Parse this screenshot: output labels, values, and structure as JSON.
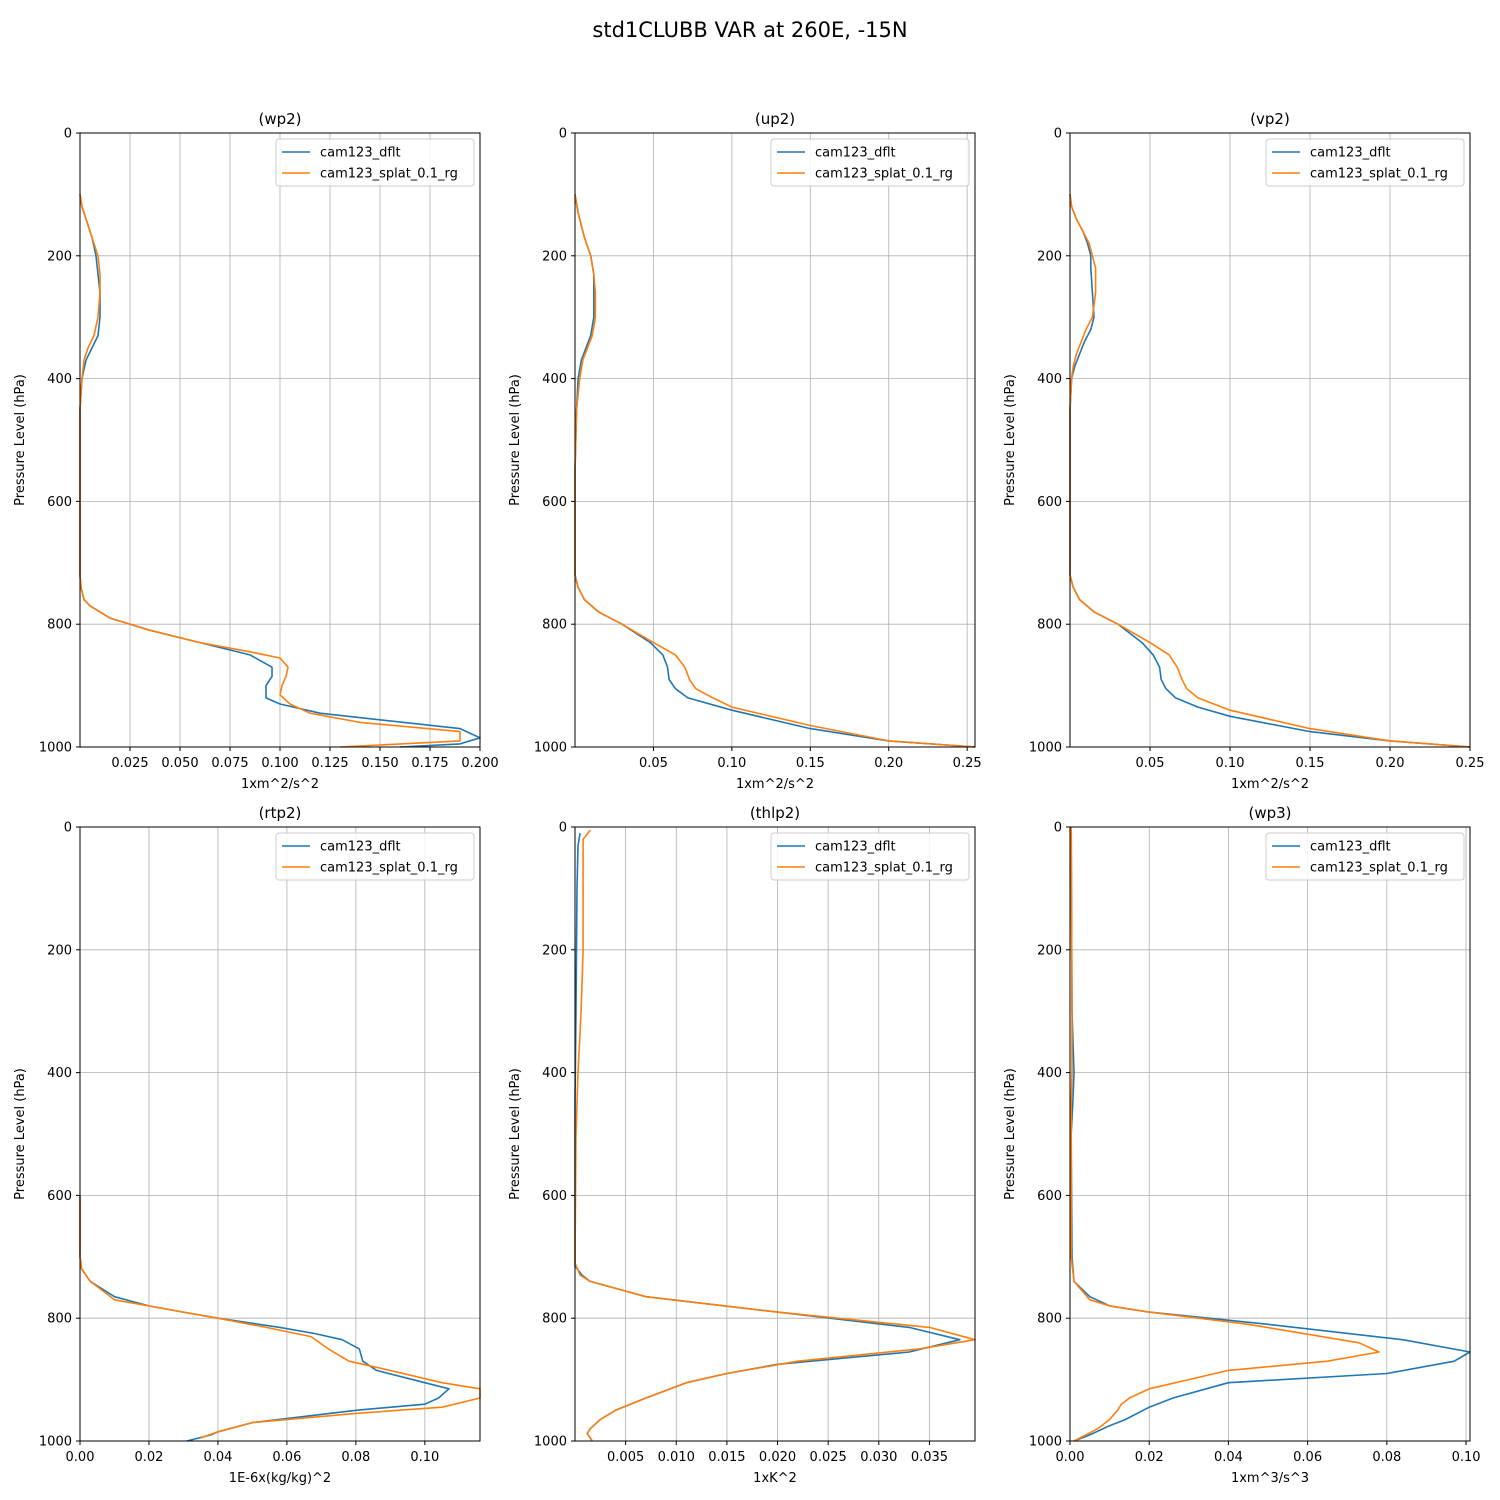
{
  "figure_title": "std1CLUBB VAR at 260E, -15N",
  "colors": {
    "series1": "#1f77b4",
    "series2": "#ff7f0e",
    "grid": "#b0b0b0"
  },
  "chart_data": [
    {
      "type": "line",
      "title": "(wp2)",
      "xlabel": "1xm^2/s^2",
      "ylabel": "Pressure Level (hPa)",
      "xlim": [
        0.0,
        0.2
      ],
      "ylim": [
        1000,
        0
      ],
      "legend": "top-right",
      "xticks": [
        0.025,
        0.05,
        0.075,
        0.1,
        0.125,
        0.15,
        0.175,
        0.2
      ],
      "xtick_labels": [
        "0.025",
        "0.050",
        "0.075",
        "0.100",
        "0.125",
        "0.150",
        "0.175",
        "0.200"
      ],
      "yticks": [
        0,
        200,
        400,
        600,
        800,
        1000
      ],
      "ytick_labels": [
        "0",
        "200",
        "400",
        "600",
        "800",
        "1000"
      ],
      "series": [
        {
          "name": "cam123_dflt",
          "x": [
            0,
            0.001,
            0.003,
            0.006,
            0.008,
            0.009,
            0.01,
            0.01,
            0.009,
            0.006,
            0.003,
            0.001,
            0,
            0,
            0,
            0,
            0.0005,
            0.002,
            0.005,
            0.015,
            0.035,
            0.06,
            0.085,
            0.096,
            0.096,
            0.093,
            0.093,
            0.1,
            0.12,
            0.19,
            0.2,
            0.19,
            0.16
          ],
          "y": [
            100,
            120,
            140,
            170,
            200,
            230,
            260,
            300,
            330,
            350,
            370,
            400,
            450,
            550,
            650,
            720,
            740,
            760,
            770,
            790,
            810,
            830,
            850,
            870,
            885,
            900,
            920,
            930,
            945,
            970,
            985,
            995,
            1000
          ]
        },
        {
          "name": "cam123_splat_0.1_rg",
          "x": [
            0,
            0.001,
            0.003,
            0.006,
            0.009,
            0.01,
            0.01,
            0.009,
            0.007,
            0.004,
            0.002,
            0.001,
            0,
            0,
            0,
            0,
            0.0005,
            0.002,
            0.005,
            0.015,
            0.035,
            0.06,
            0.085,
            0.1,
            0.104,
            0.103,
            0.101,
            0.1,
            0.105,
            0.115,
            0.14,
            0.19,
            0.19,
            0.13
          ],
          "y": [
            100,
            120,
            140,
            170,
            200,
            230,
            260,
            300,
            330,
            350,
            370,
            400,
            450,
            550,
            650,
            720,
            740,
            760,
            770,
            790,
            810,
            830,
            845,
            855,
            870,
            885,
            900,
            915,
            930,
            945,
            960,
            975,
            990,
            1000
          ]
        }
      ]
    },
    {
      "type": "line",
      "title": "(up2)",
      "xlabel": "1xm^2/s^2",
      "ylabel": "Pressure Level (hPa)",
      "xlim": [
        0.0,
        0.255
      ],
      "ylim": [
        1000,
        0
      ],
      "legend": "top-right",
      "xticks": [
        0.05,
        0.1,
        0.15,
        0.2,
        0.25
      ],
      "xtick_labels": [
        "0.05",
        "0.10",
        "0.15",
        "0.20",
        "0.25"
      ],
      "yticks": [
        0,
        200,
        400,
        600,
        800,
        1000
      ],
      "ytick_labels": [
        "0",
        "200",
        "400",
        "600",
        "800",
        "1000"
      ],
      "series": [
        {
          "name": "cam123_dflt",
          "x": [
            0,
            0.002,
            0.006,
            0.01,
            0.012,
            0.012,
            0.012,
            0.01,
            0.007,
            0.004,
            0.002,
            0.001,
            0,
            0,
            0,
            0.002,
            0.006,
            0.015,
            0.03,
            0.048,
            0.056,
            0.059,
            0.06,
            0.064,
            0.072,
            0.1,
            0.15,
            0.2,
            0.255
          ],
          "y": [
            100,
            130,
            170,
            200,
            230,
            260,
            300,
            330,
            350,
            370,
            400,
            450,
            550,
            650,
            720,
            740,
            760,
            780,
            800,
            830,
            850,
            870,
            890,
            905,
            920,
            940,
            970,
            990,
            1000
          ]
        },
        {
          "name": "cam123_splat_0.1_rg",
          "x": [
            0,
            0.002,
            0.006,
            0.01,
            0.012,
            0.013,
            0.013,
            0.011,
            0.008,
            0.005,
            0.003,
            0.001,
            0,
            0,
            0,
            0.002,
            0.006,
            0.015,
            0.03,
            0.05,
            0.064,
            0.07,
            0.073,
            0.077,
            0.088,
            0.1,
            0.15,
            0.2,
            0.255
          ],
          "y": [
            100,
            130,
            170,
            200,
            230,
            260,
            300,
            330,
            350,
            370,
            400,
            450,
            550,
            650,
            720,
            740,
            760,
            780,
            800,
            830,
            850,
            870,
            890,
            905,
            920,
            935,
            965,
            990,
            1000
          ]
        }
      ]
    },
    {
      "type": "line",
      "title": "(vp2)",
      "xlabel": "1xm^2/s^2",
      "ylabel": "Pressure Level (hPa)",
      "xlim": [
        0.0,
        0.25
      ],
      "ylim": [
        1000,
        0
      ],
      "legend": "top-right",
      "xticks": [
        0.05,
        0.1,
        0.15,
        0.2,
        0.25
      ],
      "xtick_labels": [
        "0.05",
        "0.10",
        "0.15",
        "0.20",
        "0.25"
      ],
      "yticks": [
        0,
        200,
        400,
        600,
        800,
        1000
      ],
      "ytick_labels": [
        "0",
        "200",
        "400",
        "600",
        "800",
        "1000"
      ],
      "series": [
        {
          "name": "cam123_dflt",
          "x": [
            0,
            0.001,
            0.004,
            0.008,
            0.011,
            0.013,
            0.013,
            0.014,
            0.015,
            0.013,
            0.009,
            0.006,
            0.003,
            0.001,
            0,
            0,
            0,
            0.002,
            0.006,
            0.015,
            0.03,
            0.045,
            0.052,
            0.056,
            0.057,
            0.06,
            0.066,
            0.08,
            0.1,
            0.15,
            0.2,
            0.25
          ],
          "y": [
            100,
            120,
            140,
            160,
            180,
            200,
            220,
            260,
            300,
            320,
            340,
            360,
            380,
            400,
            450,
            550,
            720,
            740,
            760,
            780,
            800,
            830,
            850,
            870,
            890,
            905,
            920,
            935,
            950,
            975,
            990,
            1000
          ]
        },
        {
          "name": "cam123_splat_0.1_rg",
          "x": [
            0,
            0.001,
            0.004,
            0.008,
            0.012,
            0.014,
            0.016,
            0.016,
            0.016,
            0.014,
            0.01,
            0.007,
            0.004,
            0.002,
            0.001,
            0,
            0,
            0.002,
            0.006,
            0.015,
            0.03,
            0.05,
            0.062,
            0.067,
            0.07,
            0.073,
            0.08,
            0.1,
            0.15,
            0.2,
            0.25
          ],
          "y": [
            100,
            120,
            140,
            160,
            180,
            200,
            220,
            240,
            260,
            300,
            320,
            340,
            360,
            380,
            400,
            450,
            720,
            740,
            760,
            780,
            800,
            830,
            850,
            870,
            890,
            905,
            920,
            940,
            970,
            990,
            1000
          ]
        }
      ]
    },
    {
      "type": "line",
      "title": "(rtp2)",
      "xlabel": "1E-6x(kg/kg)^2",
      "ylabel": "Pressure Level (hPa)",
      "xlim": [
        0.0,
        0.116
      ],
      "ylim": [
        1000,
        0
      ],
      "legend": "top-right",
      "xticks": [
        0.0,
        0.02,
        0.04,
        0.06,
        0.08,
        0.1
      ],
      "xtick_labels": [
        "0.00",
        "0.02",
        "0.04",
        "0.06",
        "0.08",
        "0.10"
      ],
      "yticks": [
        0,
        200,
        400,
        600,
        800,
        1000
      ],
      "ytick_labels": [
        "0",
        "200",
        "400",
        "600",
        "800",
        "1000"
      ],
      "series": [
        {
          "name": "cam123_dflt",
          "x": [
            0,
            0,
            0.0005,
            0.003,
            0.01,
            0.02,
            0.03,
            0.04,
            0.058,
            0.068,
            0.076,
            0.081,
            0.082,
            0.086,
            0.1,
            0.107,
            0.104,
            0.1,
            0.08,
            0.05,
            0.04,
            0.038,
            0.031
          ],
          "y": [
            600,
            700,
            720,
            740,
            765,
            780,
            790,
            800,
            815,
            825,
            835,
            850,
            870,
            885,
            905,
            915,
            930,
            940,
            950,
            970,
            985,
            990,
            1000
          ]
        },
        {
          "name": "cam123_splat_0.1_rg",
          "x": [
            0,
            0,
            0.0005,
            0.003,
            0.01,
            0.02,
            0.03,
            0.04,
            0.054,
            0.067,
            0.072,
            0.078,
            0.086,
            0.105,
            0.116,
            0.116,
            0.105,
            0.08,
            0.05,
            0.04,
            0.035
          ],
          "y": [
            600,
            700,
            720,
            740,
            770,
            780,
            790,
            800,
            815,
            830,
            850,
            870,
            880,
            905,
            915,
            930,
            945,
            955,
            970,
            985,
            995
          ]
        }
      ]
    },
    {
      "type": "line",
      "title": "(thlp2)",
      "xlabel": "1xK^2",
      "ylabel": "Pressure Level (hPa)",
      "xlim": [
        0.0,
        0.0395
      ],
      "ylim": [
        1000,
        0
      ],
      "legend": "top-right",
      "xticks": [
        0.005,
        0.01,
        0.015,
        0.02,
        0.025,
        0.03,
        0.035
      ],
      "xtick_labels": [
        "0.005",
        "0.010",
        "0.015",
        "0.020",
        "0.025",
        "0.030",
        "0.035"
      ],
      "yticks": [
        0,
        200,
        400,
        600,
        800,
        1000
      ],
      "ytick_labels": [
        "0",
        "200",
        "400",
        "600",
        "800",
        "1000"
      ],
      "series": [
        {
          "name": "cam123_dflt",
          "x": [
            0.0005,
            0.0003,
            0.0002,
            0.0001,
            0,
            0,
            0,
            0,
            0.0007,
            0.0015,
            0.007,
            0.02,
            0.033,
            0.038,
            0.033,
            0.02,
            0.015,
            0.011,
            0.007,
            0.004,
            0.0025,
            0.0015,
            0.0012,
            0.0015,
            0.0017
          ],
          "y": [
            10,
            30,
            100,
            300,
            450,
            600,
            700,
            715,
            730,
            740,
            765,
            790,
            815,
            835,
            855,
            875,
            890,
            905,
            930,
            950,
            965,
            980,
            988,
            995,
            1000
          ]
        },
        {
          "name": "cam123_splat_0.1_rg",
          "x": [
            0.0015,
            0.0008,
            0.0008,
            0.0008,
            0.0006,
            0.0003,
            0.0001,
            0,
            0.0005,
            0.0015,
            0.007,
            0.02,
            0.035,
            0.0395,
            0.034,
            0.022,
            0.015,
            0.011,
            0.007,
            0.004,
            0.0025,
            0.0015,
            0.0012,
            0.0015,
            0.0017
          ],
          "y": [
            5,
            20,
            50,
            200,
            300,
            400,
            500,
            710,
            730,
            740,
            765,
            790,
            815,
            835,
            850,
            870,
            890,
            905,
            930,
            950,
            965,
            980,
            988,
            995,
            1000
          ]
        }
      ]
    },
    {
      "type": "line",
      "title": "(wp3)",
      "xlabel": "1xm^3/s^3",
      "ylabel": "Pressure Level (hPa)",
      "xlim": [
        0.0,
        0.101
      ],
      "ylim": [
        1000,
        0
      ],
      "legend": "top-right",
      "xticks": [
        0.0,
        0.02,
        0.04,
        0.06,
        0.08,
        0.1
      ],
      "xtick_labels": [
        "0.00",
        "0.02",
        "0.04",
        "0.06",
        "0.08",
        "0.10"
      ],
      "yticks": [
        0,
        200,
        400,
        600,
        800,
        1000
      ],
      "ytick_labels": [
        "0",
        "200",
        "400",
        "600",
        "800",
        "1000"
      ],
      "series": [
        {
          "name": "cam123_dflt",
          "x": [
            0.0003,
            0.0005,
            0.001,
            0.0007,
            0.0003,
            0.0005,
            0.001,
            0.005,
            0.01,
            0.02,
            0.05,
            0.084,
            0.101,
            0.097,
            0.08,
            0.04,
            0.026,
            0.02,
            0.014,
            0.01,
            0.005,
            0.001
          ],
          "y": [
            0,
            300,
            400,
            450,
            500,
            700,
            740,
            765,
            780,
            790,
            810,
            835,
            855,
            870,
            890,
            905,
            930,
            945,
            965,
            975,
            990,
            1000
          ]
        },
        {
          "name": "cam123_splat_0.1_rg",
          "x": [
            0.0003,
            0.0005,
            0.0005,
            0.0003,
            0.0003,
            0.0003,
            0.001,
            0.005,
            0.01,
            0.02,
            0.045,
            0.073,
            0.078,
            0.065,
            0.04,
            0.03,
            0.02,
            0.015,
            0.013,
            0.012,
            0.01,
            0.007,
            0.004,
            0.001
          ],
          "y": [
            0,
            300,
            400,
            450,
            500,
            700,
            740,
            770,
            780,
            790,
            810,
            840,
            855,
            870,
            885,
            900,
            915,
            930,
            940,
            950,
            965,
            980,
            990,
            1000
          ]
        }
      ]
    }
  ]
}
